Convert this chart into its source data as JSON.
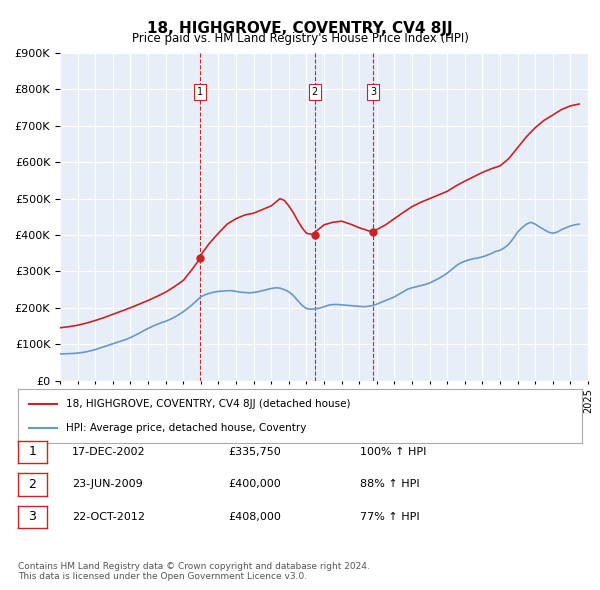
{
  "title": "18, HIGHGROVE, COVENTRY, CV4 8JJ",
  "subtitle": "Price paid vs. HM Land Registry's House Price Index (HPI)",
  "bg_color": "#e8eef8",
  "plot_bg_color": "#e8eef8",
  "hpi_color": "#6699cc",
  "price_color": "#cc2222",
  "ylim": [
    0,
    900000
  ],
  "yticks": [
    0,
    100000,
    200000,
    300000,
    400000,
    500000,
    600000,
    700000,
    800000,
    900000
  ],
  "ylabel_fmt": "£{0}K",
  "xlabel_start": 1995,
  "xlabel_end": 2025,
  "transactions": [
    {
      "num": 1,
      "date": "17-DEC-2002",
      "price": 335750,
      "hpi_pct": "100%",
      "year": 2002.96
    },
    {
      "num": 2,
      "date": "23-JUN-2009",
      "price": 400000,
      "hpi_pct": "88%",
      "year": 2009.47
    },
    {
      "num": 3,
      "date": "22-OCT-2012",
      "price": 408000,
      "hpi_pct": "77%",
      "year": 2012.8
    }
  ],
  "legend_label_price": "18, HIGHGROVE, COVENTRY, CV4 8JJ (detached house)",
  "legend_label_hpi": "HPI: Average price, detached house, Coventry",
  "footer": "Contains HM Land Registry data © Crown copyright and database right 2024.\nThis data is licensed under the Open Government Licence v3.0.",
  "hpi_data_x": [
    1995.0,
    1995.25,
    1995.5,
    1995.75,
    1996.0,
    1996.25,
    1996.5,
    1996.75,
    1997.0,
    1997.25,
    1997.5,
    1997.75,
    1998.0,
    1998.25,
    1998.5,
    1998.75,
    1999.0,
    1999.25,
    1999.5,
    1999.75,
    2000.0,
    2000.25,
    2000.5,
    2000.75,
    2001.0,
    2001.25,
    2001.5,
    2001.75,
    2002.0,
    2002.25,
    2002.5,
    2002.75,
    2003.0,
    2003.25,
    2003.5,
    2003.75,
    2004.0,
    2004.25,
    2004.5,
    2004.75,
    2005.0,
    2005.25,
    2005.5,
    2005.75,
    2006.0,
    2006.25,
    2006.5,
    2006.75,
    2007.0,
    2007.25,
    2007.5,
    2007.75,
    2008.0,
    2008.25,
    2008.5,
    2008.75,
    2009.0,
    2009.25,
    2009.5,
    2009.75,
    2010.0,
    2010.25,
    2010.5,
    2010.75,
    2011.0,
    2011.25,
    2011.5,
    2011.75,
    2012.0,
    2012.25,
    2012.5,
    2012.75,
    2013.0,
    2013.25,
    2013.5,
    2013.75,
    2014.0,
    2014.25,
    2014.5,
    2014.75,
    2015.0,
    2015.25,
    2015.5,
    2015.75,
    2016.0,
    2016.25,
    2016.5,
    2016.75,
    2017.0,
    2017.25,
    2017.5,
    2017.75,
    2018.0,
    2018.25,
    2018.5,
    2018.75,
    2019.0,
    2019.25,
    2019.5,
    2019.75,
    2020.0,
    2020.25,
    2020.5,
    2020.75,
    2021.0,
    2021.25,
    2021.5,
    2021.75,
    2022.0,
    2022.25,
    2022.5,
    2022.75,
    2023.0,
    2023.25,
    2023.5,
    2023.75,
    2024.0,
    2024.25,
    2024.5
  ],
  "hpi_data_y": [
    73000,
    73500,
    74000,
    74500,
    75500,
    77000,
    79000,
    82000,
    85000,
    89000,
    93000,
    97000,
    101000,
    105000,
    109000,
    113000,
    118000,
    124000,
    130000,
    137000,
    143000,
    149000,
    154000,
    159000,
    163000,
    168000,
    174000,
    181000,
    189000,
    198000,
    208000,
    219000,
    230000,
    236000,
    240000,
    243000,
    245000,
    246000,
    247000,
    247000,
    245000,
    243000,
    242000,
    241000,
    242000,
    244000,
    247000,
    250000,
    253000,
    255000,
    254000,
    250000,
    244000,
    234000,
    220000,
    207000,
    198000,
    196000,
    197000,
    199000,
    203000,
    207000,
    209000,
    209000,
    208000,
    207000,
    206000,
    205000,
    204000,
    203000,
    204000,
    206000,
    210000,
    215000,
    220000,
    225000,
    230000,
    237000,
    244000,
    251000,
    255000,
    258000,
    261000,
    264000,
    268000,
    274000,
    280000,
    287000,
    295000,
    305000,
    315000,
    323000,
    328000,
    332000,
    335000,
    337000,
    340000,
    344000,
    349000,
    355000,
    358000,
    365000,
    375000,
    390000,
    408000,
    420000,
    430000,
    435000,
    430000,
    422000,
    415000,
    408000,
    405000,
    408000,
    415000,
    420000,
    425000,
    428000,
    430000
  ],
  "price_data_x": [
    1995.0,
    1995.5,
    1996.0,
    1996.5,
    1997.0,
    1997.5,
    1998.0,
    1998.5,
    1999.0,
    1999.5,
    2000.0,
    2000.5,
    2001.0,
    2001.5,
    2002.0,
    2002.5,
    2002.96,
    2003.0,
    2003.5,
    2004.0,
    2004.5,
    2005.0,
    2005.5,
    2006.0,
    2006.5,
    2007.0,
    2007.5,
    2007.75,
    2008.0,
    2008.25,
    2008.5,
    2008.75,
    2009.0,
    2009.47,
    2009.5,
    2009.75,
    2010.0,
    2010.5,
    2011.0,
    2011.5,
    2012.0,
    2012.5,
    2012.8,
    2013.0,
    2013.5,
    2014.0,
    2014.5,
    2015.0,
    2015.5,
    2016.0,
    2016.5,
    2017.0,
    2017.5,
    2018.0,
    2018.5,
    2019.0,
    2019.5,
    2020.0,
    2020.5,
    2021.0,
    2021.5,
    2022.0,
    2022.5,
    2023.0,
    2023.5,
    2024.0,
    2024.5
  ],
  "price_data_y": [
    145000,
    148000,
    152000,
    158000,
    165000,
    173000,
    182000,
    191000,
    200000,
    210000,
    220000,
    231000,
    243000,
    258000,
    275000,
    305000,
    335750,
    345000,
    378000,
    405000,
    430000,
    445000,
    455000,
    460000,
    470000,
    480000,
    500000,
    495000,
    480000,
    462000,
    440000,
    420000,
    405000,
    400000,
    408000,
    418000,
    428000,
    435000,
    438000,
    430000,
    420000,
    412000,
    408000,
    415000,
    428000,
    445000,
    462000,
    478000,
    490000,
    500000,
    510000,
    520000,
    535000,
    548000,
    560000,
    572000,
    582000,
    590000,
    610000,
    640000,
    670000,
    695000,
    715000,
    730000,
    745000,
    755000,
    760000
  ]
}
